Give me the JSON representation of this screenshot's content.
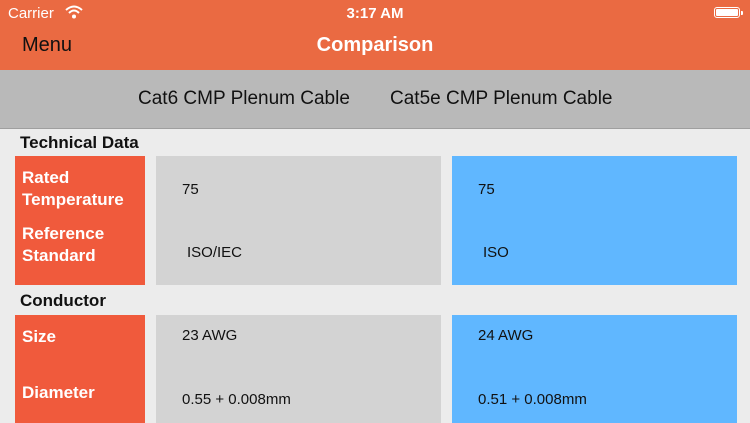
{
  "status_bar": {
    "carrier": "Carrier",
    "time": "3:17 AM"
  },
  "nav": {
    "menu_label": "Menu",
    "title": "Comparison"
  },
  "colors": {
    "nav_bar": "#ea6a42",
    "label_cell": "#f05a3c",
    "product1_column": "#d3d3d3",
    "product2_column": "#60b7ff"
  },
  "products": [
    "Cat6 CMP Plenum Cable",
    "Cat5e CMP Plenum Cable"
  ],
  "sections": [
    {
      "title": "Technical Data",
      "rows": [
        {
          "label": "Rated Temperature",
          "values": [
            "75",
            "75"
          ]
        },
        {
          "label": "Reference Standard",
          "values": [
            "ISO/IEC",
            "ISO"
          ]
        }
      ]
    },
    {
      "title": "Conductor",
      "rows": [
        {
          "label": "Size",
          "values": [
            "23 AWG",
            "24 AWG"
          ]
        },
        {
          "label": "Diameter",
          "values": [
            "0.55  +  0.008mm",
            "0.51  +  0.008mm"
          ]
        }
      ]
    }
  ]
}
